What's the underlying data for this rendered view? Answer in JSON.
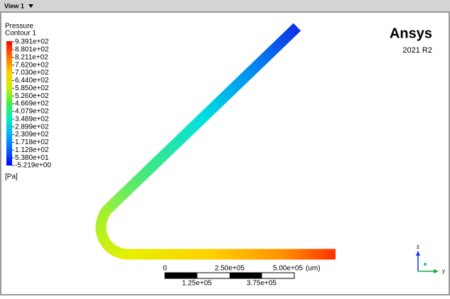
{
  "toolbar": {
    "view": "View 1"
  },
  "legend": {
    "title": "Pressure",
    "subtitle": "Contour 1",
    "labels": [
      "9.391e+02",
      "8.801e+02",
      "8.211e+02",
      "7.620e+02",
      "7.030e+02",
      "6.440e+02",
      "5.850e+02",
      "5.260e+02",
      "4.669e+02",
      "4.079e+02",
      "3.489e+02",
      "2.899e+02",
      "2.309e+02",
      "1.718e+02",
      "1.128e+02",
      "5.380e+01",
      "-5.219e+00"
    ],
    "unit": "[Pa]"
  },
  "brand": {
    "name": "Ansys",
    "version": "2021 R2"
  },
  "scale_bar": {
    "top_labels": [
      "0",
      "2.50e+05",
      "5.00e+05"
    ],
    "bottom_labels": [
      "1.25e+05",
      "3.75e+05"
    ],
    "unit": "(um)"
  },
  "triad": {
    "z": "z",
    "y": "y"
  }
}
